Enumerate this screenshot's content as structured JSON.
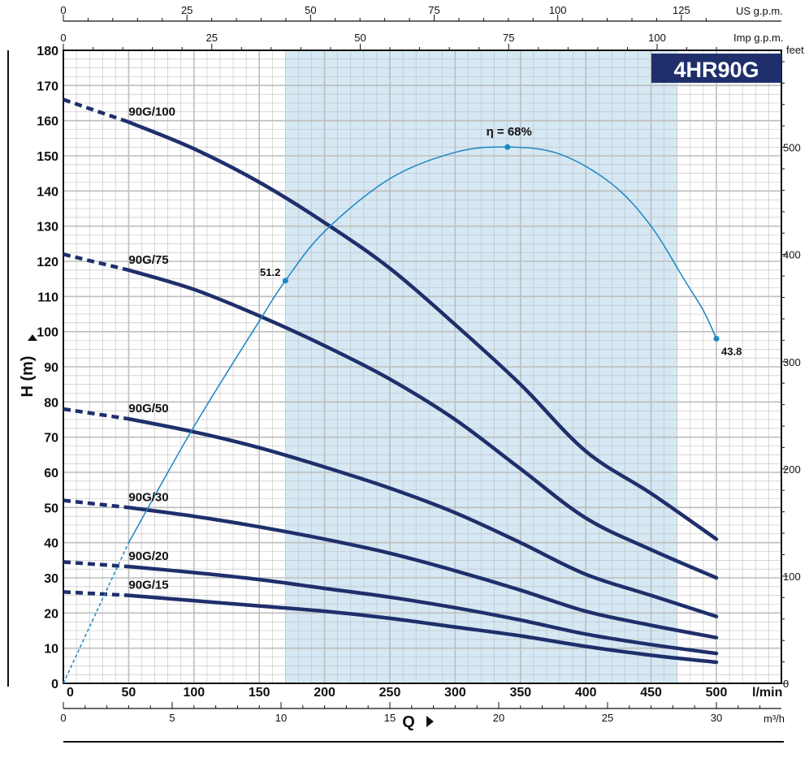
{
  "chart_data": {
    "type": "line",
    "title": "4HR90G",
    "xlabel": "Q",
    "ylabel": "H (m)",
    "x_unit": "l/min",
    "y_unit_right": "feet",
    "xlim": [
      0,
      500
    ],
    "ylim": [
      0,
      180
    ],
    "grid": true,
    "x_ticks": [
      "0",
      "50",
      "100",
      "150",
      "200",
      "250",
      "300",
      "350",
      "400",
      "450",
      "500"
    ],
    "y_ticks": [
      "0",
      "10",
      "20",
      "30",
      "40",
      "50",
      "60",
      "70",
      "80",
      "90",
      "100",
      "110",
      "120",
      "130",
      "140",
      "150",
      "160",
      "170",
      "180"
    ],
    "top_axis_us": {
      "unit": "US g.p.m.",
      "ticks": [
        "0",
        "25",
        "50",
        "75",
        "100",
        "125"
      ],
      "values": [
        0,
        25,
        50,
        75,
        100,
        125
      ]
    },
    "top_axis_imp": {
      "unit": "Imp g.p.m.",
      "ticks": [
        "0",
        "25",
        "50",
        "75",
        "100"
      ],
      "values": [
        0,
        25,
        50,
        75,
        100
      ]
    },
    "bottom_axis_m3h": {
      "unit": "m³/h",
      "ticks": [
        "0",
        "5",
        "10",
        "15",
        "20",
        "25",
        "30"
      ],
      "values": [
        0,
        5,
        10,
        15,
        20,
        25,
        30
      ]
    },
    "right_axis_feet": {
      "unit": "feet",
      "ticks": [
        "0",
        "100",
        "200",
        "300",
        "400",
        "500"
      ],
      "values": [
        0,
        100,
        200,
        300,
        400,
        500
      ]
    },
    "recommended_range": [
      170,
      470
    ],
    "series": [
      {
        "name": "90G/100",
        "dashed_x": [
          0,
          50
        ],
        "dashed_y": [
          166,
          159.6
        ],
        "x": [
          50,
          100,
          150,
          200,
          250,
          300,
          350,
          400,
          450,
          500
        ],
        "y": [
          159.6,
          152,
          142.5,
          131,
          118,
          102,
          85,
          66,
          54,
          41
        ]
      },
      {
        "name": "90G/75",
        "dashed_x": [
          0,
          50
        ],
        "dashed_y": [
          122,
          117.5
        ],
        "x": [
          50,
          100,
          150,
          200,
          250,
          300,
          350,
          400,
          450,
          500
        ],
        "y": [
          117.5,
          112,
          104.5,
          96,
          86.5,
          75,
          61,
          47,
          38,
          30
        ]
      },
      {
        "name": "90G/50",
        "dashed_x": [
          0,
          50
        ],
        "dashed_y": [
          78,
          75.2
        ],
        "x": [
          50,
          100,
          150,
          200,
          250,
          300,
          350,
          400,
          450,
          500
        ],
        "y": [
          75.2,
          71.5,
          67,
          61.5,
          55.5,
          48.5,
          40,
          31,
          25,
          19
        ]
      },
      {
        "name": "90G/30",
        "dashed_x": [
          0,
          50
        ],
        "dashed_y": [
          52,
          50
        ],
        "x": [
          50,
          100,
          150,
          200,
          250,
          300,
          350,
          400,
          450,
          500
        ],
        "y": [
          50,
          47.5,
          44.5,
          41,
          37,
          32,
          26.5,
          20.5,
          16.5,
          13
        ]
      },
      {
        "name": "90G/20",
        "dashed_x": [
          0,
          50
        ],
        "dashed_y": [
          34.5,
          33.2
        ],
        "x": [
          50,
          100,
          150,
          200,
          250,
          300,
          350,
          400,
          450,
          500
        ],
        "y": [
          33.2,
          31.5,
          29.5,
          27,
          24.5,
          21.5,
          18,
          14,
          11,
          8.5
        ]
      },
      {
        "name": "90G/15",
        "dashed_x": [
          0,
          50
        ],
        "dashed_y": [
          26,
          25
        ],
        "x": [
          50,
          100,
          150,
          200,
          250,
          300,
          350,
          400,
          450,
          500
        ],
        "y": [
          25,
          23.5,
          22,
          20.5,
          18.5,
          16,
          13.5,
          10.5,
          8,
          6
        ]
      }
    ],
    "efficiency_curve": {
      "label": "η = 68%",
      "points": [
        {
          "x": 0,
          "y": 0
        },
        {
          "x": 25,
          "y": 20
        },
        {
          "x": 50,
          "y": 40
        },
        {
          "x": 100,
          "y": 73
        },
        {
          "x": 150,
          "y": 103
        },
        {
          "x": 170,
          "y": 114.5
        },
        {
          "x": 200,
          "y": 128.5
        },
        {
          "x": 250,
          "y": 143.5
        },
        {
          "x": 300,
          "y": 151
        },
        {
          "x": 340,
          "y": 152.5
        },
        {
          "x": 380,
          "y": 150.5
        },
        {
          "x": 420,
          "y": 142
        },
        {
          "x": 450,
          "y": 130
        },
        {
          "x": 475,
          "y": 115
        },
        {
          "x": 490,
          "y": 106
        },
        {
          "x": 500,
          "y": 98
        }
      ],
      "dashed_until_x": 50,
      "markers": [
        {
          "x": 170,
          "y": 114.5,
          "label": "51.2"
        },
        {
          "x": 340,
          "y": 152.5,
          "label": ""
        },
        {
          "x": 500,
          "y": 98,
          "label": "43.8"
        }
      ]
    },
    "colors": {
      "curve": "#1f2f6b",
      "efficiency": "#1b86c4",
      "range_fill": "#d5e8f4",
      "title_bg": "#1f2f6b",
      "grid": "#bdbdbd"
    }
  }
}
